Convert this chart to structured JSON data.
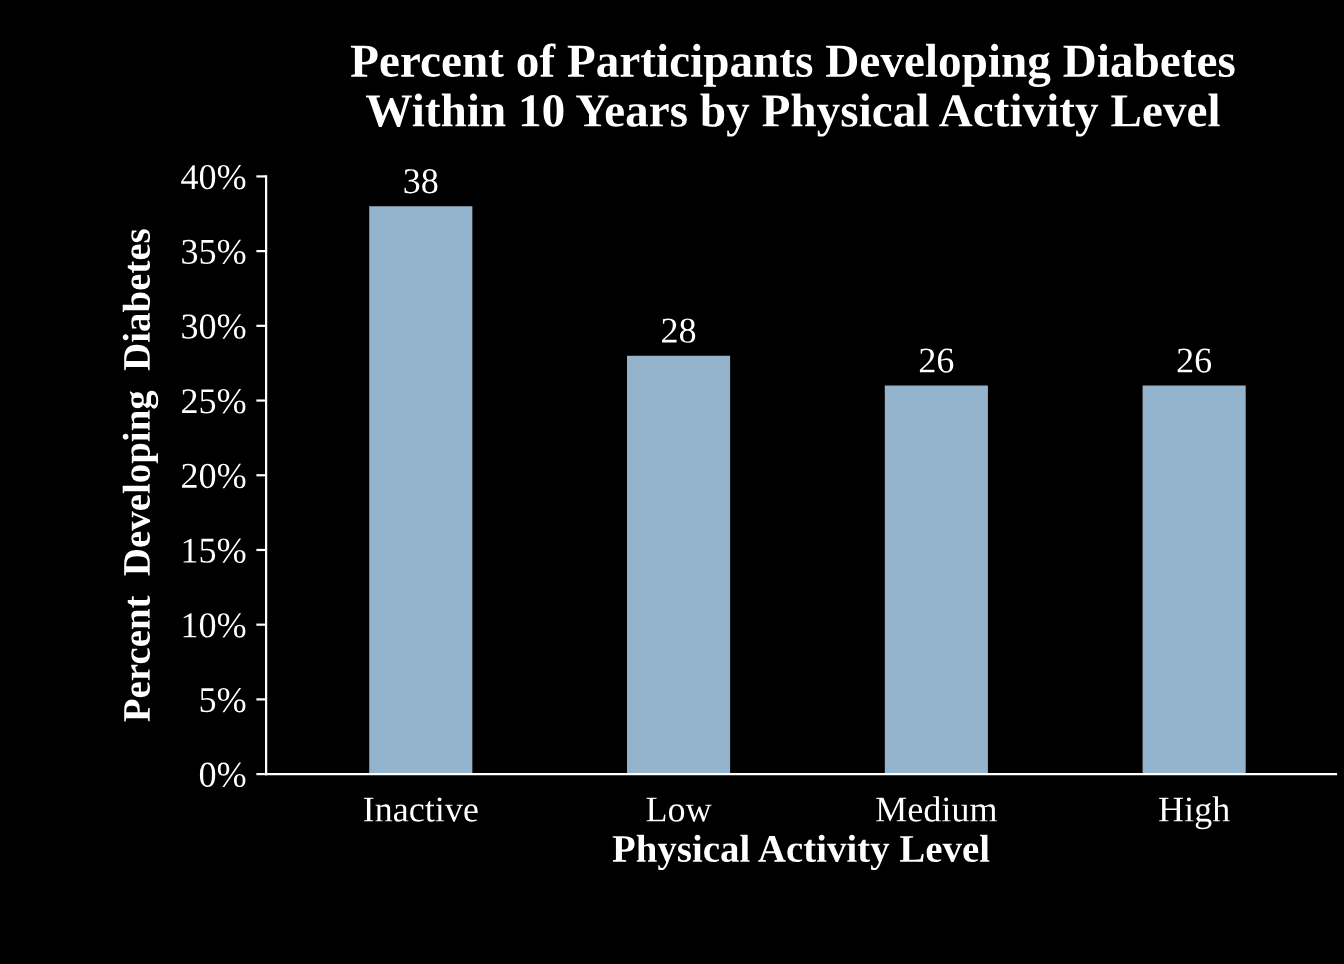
{
  "chart_data": {
    "type": "bar",
    "title": "Percent of Participants Developing Diabetes\nWithin 10 Years by Physical Activity Level",
    "xlabel": "Physical Activity Level",
    "ylabel": "Percent  Developing  Diabetes",
    "categories": [
      "Inactive",
      "Low",
      "Medium",
      "High"
    ],
    "values": [
      38,
      28,
      26,
      26
    ],
    "color": "#94b3cc",
    "data_labels": true,
    "ylim": [
      0,
      40
    ],
    "yticks": [
      {
        "value": 0,
        "label": "0%"
      },
      {
        "value": 5,
        "label": "5%"
      },
      {
        "value": 10,
        "label": "10%"
      },
      {
        "value": 15,
        "label": "15%"
      },
      {
        "value": 20,
        "label": "20%"
      },
      {
        "value": 25,
        "label": "25%"
      },
      {
        "value": 30,
        "label": "30%"
      },
      {
        "value": 35,
        "label": "35%"
      },
      {
        "value": 40,
        "label": "40%"
      }
    ],
    "grid": false,
    "legend": false
  }
}
